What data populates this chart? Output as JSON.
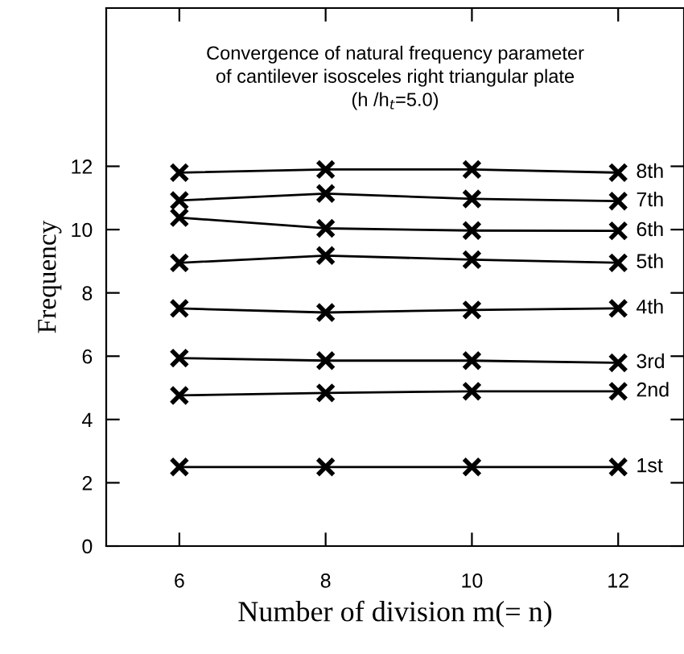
{
  "chart_data": {
    "type": "line",
    "title": "Convergence of natural frequency parameter\nof cantilever isosceles right triangular plate\n(h /h$_{t}$=5.0)",
    "xlabel": "Number of division m(= n)",
    "ylabel": "Frequency",
    "x": [
      6,
      8,
      10,
      12
    ],
    "series": [
      {
        "name": "1st",
        "color": "#000000",
        "values": [
          2.5,
          2.5,
          2.5,
          2.5
        ]
      },
      {
        "name": "2nd",
        "color": "#000000",
        "values": [
          4.76,
          4.84,
          4.89,
          4.89
        ]
      },
      {
        "name": "3rd",
        "color": "#000000",
        "values": [
          5.94,
          5.86,
          5.86,
          5.79
        ]
      },
      {
        "name": "4th",
        "color": "#000000",
        "values": [
          7.51,
          7.38,
          7.46,
          7.51
        ]
      },
      {
        "name": "5th",
        "color": "#000000",
        "values": [
          8.95,
          9.18,
          9.05,
          8.95
        ]
      },
      {
        "name": "6th",
        "color": "#000000",
        "values": [
          10.38,
          10.04,
          9.97,
          9.96
        ]
      },
      {
        "name": "7th",
        "color": "#000000",
        "values": [
          10.92,
          11.14,
          10.97,
          10.9
        ]
      },
      {
        "name": "8th",
        "color": "#000000",
        "values": [
          11.8,
          11.9,
          11.9,
          11.8
        ]
      }
    ],
    "xlim": [
      5,
      12.9
    ],
    "xticks": [
      6,
      8,
      10,
      12
    ],
    "ylim": [
      0,
      17
    ],
    "yticks": [
      0,
      2,
      4,
      6,
      8,
      10,
      12
    ],
    "marker": "cross",
    "line_style": "solid",
    "grid": false,
    "legend": "right"
  }
}
